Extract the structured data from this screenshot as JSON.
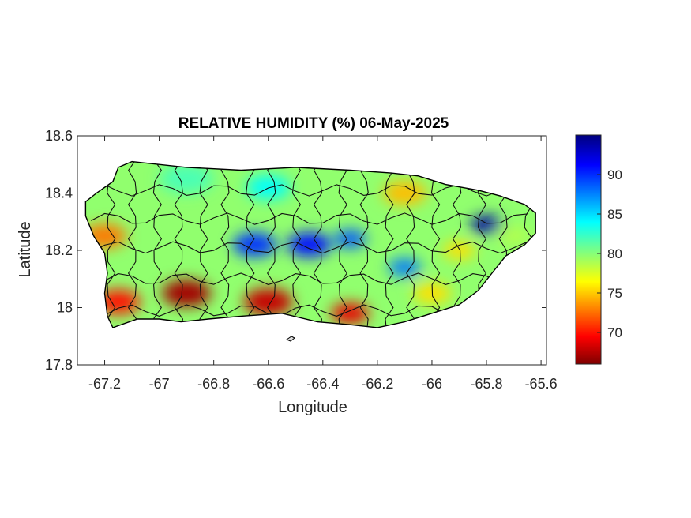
{
  "title": "RELATIVE HUMIDITY (%) 06-May-2025",
  "xlabel": "Longitude",
  "ylabel": "Latitude",
  "xlim": [
    -67.3,
    -65.58
  ],
  "ylim": [
    17.8,
    18.6
  ],
  "xticks": [
    {
      "value": -67.2,
      "label": "-67.2"
    },
    {
      "value": -67.0,
      "label": "-67"
    },
    {
      "value": -66.8,
      "label": "-66.8"
    },
    {
      "value": -66.6,
      "label": "-66.6"
    },
    {
      "value": -66.4,
      "label": "-66.4"
    },
    {
      "value": -66.2,
      "label": "-66.2"
    },
    {
      "value": -66.0,
      "label": "-66"
    },
    {
      "value": -65.8,
      "label": "-65.8"
    },
    {
      "value": -65.6,
      "label": "-65.6"
    }
  ],
  "yticks": [
    {
      "value": 17.8,
      "label": "17.8"
    },
    {
      "value": 18.0,
      "label": "18"
    },
    {
      "value": 18.2,
      "label": "18.2"
    },
    {
      "value": 18.4,
      "label": "18.4"
    },
    {
      "value": 18.6,
      "label": "18.6"
    }
  ],
  "colorbar": {
    "min": 66,
    "max": 95,
    "colormap": "jet-reversed",
    "ticks": [
      {
        "value": 70,
        "label": "70"
      },
      {
        "value": 75,
        "label": "75"
      },
      {
        "value": 80,
        "label": "80"
      },
      {
        "value": 85,
        "label": "85"
      },
      {
        "value": 90,
        "label": "90"
      }
    ]
  },
  "map": {
    "region": "Puerto Rico",
    "outline": [
      [
        -67.27,
        18.37
      ],
      [
        -67.23,
        18.4
      ],
      [
        -67.17,
        18.44
      ],
      [
        -67.15,
        18.49
      ],
      [
        -67.1,
        18.51
      ],
      [
        -66.9,
        18.49
      ],
      [
        -66.7,
        18.48
      ],
      [
        -66.5,
        18.49
      ],
      [
        -66.3,
        18.48
      ],
      [
        -66.15,
        18.47
      ],
      [
        -66.05,
        18.46
      ],
      [
        -65.95,
        18.43
      ],
      [
        -65.83,
        18.41
      ],
      [
        -65.75,
        18.39
      ],
      [
        -65.66,
        18.36
      ],
      [
        -65.62,
        18.33
      ],
      [
        -65.62,
        18.26
      ],
      [
        -65.66,
        18.22
      ],
      [
        -65.73,
        18.18
      ],
      [
        -65.78,
        18.12
      ],
      [
        -65.83,
        18.06
      ],
      [
        -65.9,
        18.01
      ],
      [
        -66.0,
        17.98
      ],
      [
        -66.1,
        17.95
      ],
      [
        -66.2,
        17.93
      ],
      [
        -66.3,
        17.94
      ],
      [
        -66.42,
        17.95
      ],
      [
        -66.55,
        17.98
      ],
      [
        -66.7,
        17.97
      ],
      [
        -66.82,
        17.96
      ],
      [
        -66.92,
        17.95
      ],
      [
        -67.0,
        17.96
      ],
      [
        -67.08,
        17.96
      ],
      [
        -67.17,
        17.93
      ],
      [
        -67.19,
        17.97
      ],
      [
        -67.2,
        18.05
      ],
      [
        -67.19,
        18.12
      ],
      [
        -67.2,
        18.19
      ],
      [
        -67.24,
        18.25
      ],
      [
        -67.27,
        18.32
      ],
      [
        -67.27,
        18.37
      ]
    ],
    "humidity_blobs": [
      {
        "lon": -66.9,
        "lat": 18.05,
        "rh": 67,
        "r": 0.09
      },
      {
        "lon": -66.6,
        "lat": 18.02,
        "rh": 68,
        "r": 0.09
      },
      {
        "lon": -66.3,
        "lat": 17.98,
        "rh": 69,
        "r": 0.07
      },
      {
        "lon": -67.15,
        "lat": 18.02,
        "rh": 70,
        "r": 0.08
      },
      {
        "lon": -67.2,
        "lat": 18.25,
        "rh": 73,
        "r": 0.08
      },
      {
        "lon": -66.65,
        "lat": 18.22,
        "rh": 90,
        "r": 0.08
      },
      {
        "lon": -66.45,
        "lat": 18.22,
        "rh": 91,
        "r": 0.08
      },
      {
        "lon": -66.3,
        "lat": 18.24,
        "rh": 89,
        "r": 0.06
      },
      {
        "lon": -65.8,
        "lat": 18.29,
        "rh": 94,
        "r": 0.06
      },
      {
        "lon": -66.1,
        "lat": 18.14,
        "rh": 88,
        "r": 0.06
      },
      {
        "lon": -66.1,
        "lat": 18.4,
        "rh": 75,
        "r": 0.08
      },
      {
        "lon": -65.9,
        "lat": 18.2,
        "rh": 76,
        "r": 0.06
      },
      {
        "lon": -65.7,
        "lat": 18.25,
        "rh": 79,
        "r": 0.06
      },
      {
        "lon": -66.9,
        "lat": 18.45,
        "rh": 82,
        "r": 0.1
      },
      {
        "lon": -66.6,
        "lat": 18.42,
        "rh": 84,
        "r": 0.08
      },
      {
        "lon": -66.0,
        "lat": 18.05,
        "rh": 76,
        "r": 0.07
      }
    ]
  }
}
